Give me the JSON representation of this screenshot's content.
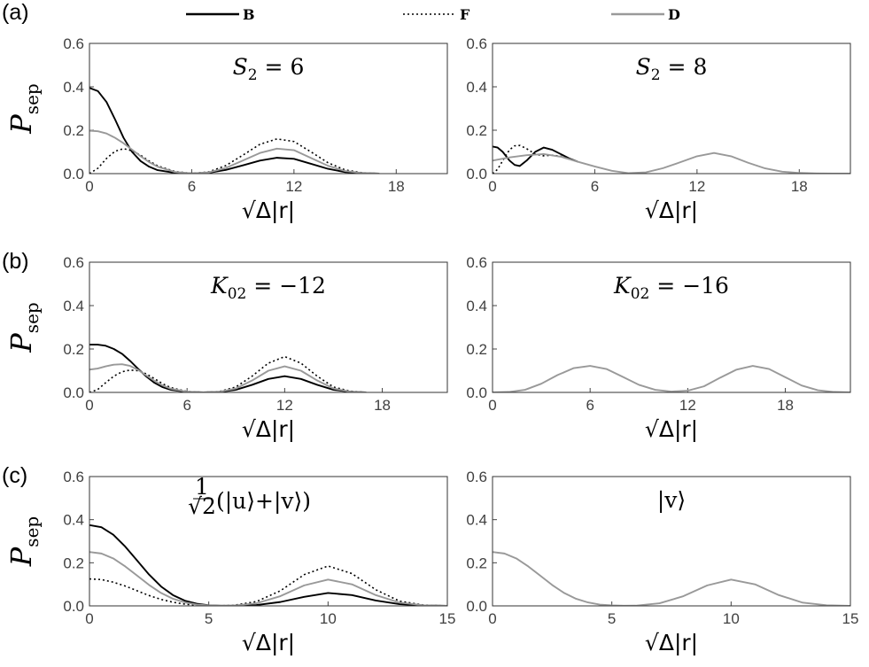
{
  "legend": [
    {
      "label": "B",
      "color": "#000000",
      "dash": ""
    },
    {
      "label": "F",
      "color": "#000000",
      "dash": "2,3"
    },
    {
      "label": "D",
      "color": "#999999",
      "dash": ""
    }
  ],
  "row_labels": [
    "(a)",
    "(b)",
    "(c)"
  ],
  "chart_data": [
    {
      "type": "line",
      "row": 0,
      "col": 0,
      "row_label": "(a)",
      "title": {
        "main": "S",
        "sub": "2",
        "rest": " = 6"
      },
      "ylabel": "P",
      "ylabel_sub": "sep",
      "xlabel": "√Δ|r|",
      "xlim": [
        0,
        21
      ],
      "ylim": [
        0,
        0.6
      ],
      "xticks": [
        0,
        6,
        12,
        18
      ],
      "yticks": [
        "0.0",
        "0.2",
        "0.4",
        "0.6"
      ],
      "series": [
        {
          "name": "B",
          "x": [
            0,
            0.5,
            1,
            1.5,
            2,
            2.5,
            3,
            3.5,
            4,
            5,
            6,
            7,
            8,
            9,
            10,
            11,
            12,
            13,
            14,
            15,
            16,
            17
          ],
          "y": [
            0.395,
            0.38,
            0.33,
            0.25,
            0.165,
            0.1,
            0.058,
            0.032,
            0.016,
            0.004,
            0.0005,
            0.004,
            0.017,
            0.038,
            0.06,
            0.073,
            0.068,
            0.045,
            0.022,
            0.007,
            0.002,
            0.0
          ]
        },
        {
          "name": "F",
          "x": [
            0,
            0.5,
            1,
            1.5,
            2,
            2.5,
            3,
            3.5,
            4,
            5,
            6,
            7,
            8,
            9,
            10,
            11,
            12,
            13,
            14,
            15,
            16,
            17
          ],
          "y": [
            0.0,
            0.025,
            0.07,
            0.103,
            0.115,
            0.105,
            0.085,
            0.058,
            0.036,
            0.01,
            0.0005,
            0.008,
            0.037,
            0.085,
            0.135,
            0.16,
            0.148,
            0.1,
            0.05,
            0.017,
            0.004,
            0.0
          ]
        },
        {
          "name": "D",
          "x": [
            0,
            0.5,
            1,
            1.5,
            2,
            2.5,
            3,
            3.5,
            4,
            5,
            6,
            7,
            8,
            9,
            10,
            11,
            12,
            13,
            14,
            15,
            16,
            17
          ],
          "y": [
            0.198,
            0.195,
            0.185,
            0.165,
            0.14,
            0.11,
            0.08,
            0.053,
            0.032,
            0.008,
            0.0005,
            0.006,
            0.026,
            0.06,
            0.095,
            0.115,
            0.108,
            0.072,
            0.036,
            0.012,
            0.003,
            0.0
          ]
        }
      ]
    },
    {
      "type": "line",
      "row": 0,
      "col": 1,
      "title": {
        "main": "S",
        "sub": "2",
        "rest": " = 8"
      },
      "xlabel": "√Δ|r|",
      "xlim": [
        0,
        21
      ],
      "ylim": [
        0,
        0.6
      ],
      "xticks": [
        0,
        6,
        12,
        18
      ],
      "yticks": [
        "0.0",
        "0.2",
        "0.4",
        "0.6"
      ],
      "series": [
        {
          "name": "B",
          "x": [
            0,
            0.3,
            0.6,
            1,
            1.3,
            1.6,
            2,
            2.5,
            3,
            3.5,
            4,
            4.5,
            5
          ],
          "y": [
            0.125,
            0.12,
            0.1,
            0.06,
            0.04,
            0.035,
            0.06,
            0.1,
            0.12,
            0.11,
            0.09,
            0.07,
            0.055
          ]
        },
        {
          "name": "F",
          "x": [
            0,
            0.3,
            0.6,
            1,
            1.3,
            1.6,
            2,
            2.5,
            3,
            3.5,
            4,
            4.5,
            5
          ],
          "y": [
            0.0,
            0.02,
            0.06,
            0.11,
            0.128,
            0.13,
            0.115,
            0.09,
            0.082,
            0.085,
            0.08,
            0.068,
            0.055
          ]
        },
        {
          "name": "D",
          "x": [
            0,
            1,
            2,
            3,
            4,
            5,
            6,
            7,
            8,
            9,
            10,
            11,
            12,
            13,
            14,
            15,
            16,
            17,
            18,
            19,
            20,
            21
          ],
          "y": [
            0.06,
            0.075,
            0.085,
            0.09,
            0.078,
            0.055,
            0.033,
            0.013,
            0.002,
            0.006,
            0.025,
            0.052,
            0.08,
            0.095,
            0.08,
            0.05,
            0.024,
            0.009,
            0.003,
            0.0008,
            0.0002,
            0.0
          ]
        }
      ]
    },
    {
      "type": "line",
      "row": 1,
      "col": 0,
      "row_label": "(b)",
      "title": {
        "main": "K",
        "sub": "02",
        "rest": " = −12"
      },
      "ylabel": "P",
      "ylabel_sub": "sep",
      "xlabel": "√Δ|r|",
      "xlim": [
        0,
        22
      ],
      "ylim": [
        0,
        0.6
      ],
      "xticks": [
        0,
        6,
        12,
        18
      ],
      "yticks": [
        "0.0",
        "0.2",
        "0.4",
        "0.6"
      ],
      "series": [
        {
          "name": "B",
          "x": [
            0,
            0.5,
            1,
            1.5,
            2,
            2.5,
            3,
            3.5,
            4,
            4.5,
            5,
            6,
            7,
            8,
            9,
            10,
            11,
            12,
            13,
            14,
            15,
            16,
            17
          ],
          "y": [
            0.22,
            0.22,
            0.215,
            0.2,
            0.178,
            0.145,
            0.108,
            0.073,
            0.044,
            0.024,
            0.012,
            0.002,
            0.0003,
            0.002,
            0.012,
            0.035,
            0.062,
            0.075,
            0.062,
            0.035,
            0.012,
            0.003,
            0.0
          ]
        },
        {
          "name": "F",
          "x": [
            0,
            0.5,
            1,
            1.5,
            2,
            2.5,
            3,
            3.5,
            4,
            4.5,
            5,
            6,
            7,
            8,
            9,
            10,
            11,
            12,
            13,
            14,
            15,
            16,
            17
          ],
          "y": [
            0.0,
            0.013,
            0.045,
            0.075,
            0.095,
            0.103,
            0.1,
            0.085,
            0.063,
            0.04,
            0.022,
            0.004,
            0.0003,
            0.004,
            0.025,
            0.075,
            0.135,
            0.165,
            0.135,
            0.075,
            0.025,
            0.006,
            0.0
          ]
        },
        {
          "name": "D",
          "x": [
            0,
            0.5,
            1,
            1.5,
            2,
            2.5,
            3,
            3.5,
            4,
            4.5,
            5,
            6,
            7,
            8,
            9,
            10,
            11,
            12,
            13,
            14,
            15,
            16,
            17
          ],
          "y": [
            0.105,
            0.11,
            0.12,
            0.128,
            0.13,
            0.122,
            0.103,
            0.078,
            0.053,
            0.032,
            0.017,
            0.003,
            0.0003,
            0.003,
            0.018,
            0.055,
            0.1,
            0.12,
            0.1,
            0.055,
            0.018,
            0.004,
            0.0
          ]
        }
      ]
    },
    {
      "type": "line",
      "row": 1,
      "col": 1,
      "title": {
        "main": "K",
        "sub": "02",
        "rest": " = −16"
      },
      "xlabel": "√Δ|r|",
      "xlim": [
        0,
        22
      ],
      "ylim": [
        0,
        0.6
      ],
      "xticks": [
        0,
        6,
        12,
        18
      ],
      "yticks": [
        "0.0",
        "0.2",
        "0.4",
        "0.6"
      ],
      "series": [
        {
          "name": "D",
          "x": [
            0,
            1,
            2,
            3,
            4,
            5,
            6,
            7,
            8,
            9,
            10,
            11,
            12,
            13,
            14,
            15,
            16,
            17,
            18,
            19,
            20,
            21,
            22
          ],
          "y": [
            0.0,
            0.002,
            0.012,
            0.04,
            0.08,
            0.112,
            0.122,
            0.108,
            0.072,
            0.035,
            0.012,
            0.004,
            0.008,
            0.028,
            0.068,
            0.105,
            0.122,
            0.108,
            0.07,
            0.032,
            0.01,
            0.002,
            0.0
          ]
        }
      ]
    },
    {
      "type": "line",
      "row": 2,
      "col": 0,
      "row_label": "(c)",
      "title_frac": {
        "num": "1",
        "den": "√2",
        "rest": "(|u⟩+|v⟩)"
      },
      "ylabel": "P",
      "ylabel_sub": "sep",
      "xlabel": "√Δ|r|",
      "xlim": [
        0,
        15
      ],
      "ylim": [
        0,
        0.6
      ],
      "xticks": [
        0,
        5,
        10,
        15
      ],
      "yticks": [
        "0.0",
        "0.2",
        "0.4",
        "0.6"
      ],
      "series": [
        {
          "name": "B",
          "x": [
            0,
            0.5,
            1,
            1.5,
            2,
            2.5,
            3,
            3.5,
            4,
            4.5,
            5,
            5.5,
            6,
            7,
            8,
            9,
            10,
            11,
            12,
            13,
            14,
            15
          ],
          "y": [
            0.375,
            0.365,
            0.33,
            0.275,
            0.21,
            0.145,
            0.09,
            0.05,
            0.024,
            0.01,
            0.003,
            0.0008,
            0.0005,
            0.004,
            0.018,
            0.042,
            0.06,
            0.05,
            0.025,
            0.008,
            0.002,
            0.0
          ]
        },
        {
          "name": "F",
          "x": [
            0,
            0.5,
            1,
            1.5,
            2,
            2.5,
            3,
            3.5,
            4,
            4.5,
            5,
            5.5,
            6,
            7,
            8,
            9,
            10,
            11,
            12,
            13,
            14,
            15
          ],
          "y": [
            0.125,
            0.122,
            0.11,
            0.092,
            0.07,
            0.048,
            0.03,
            0.017,
            0.008,
            0.003,
            0.001,
            0.0006,
            0.002,
            0.02,
            0.07,
            0.145,
            0.185,
            0.15,
            0.075,
            0.022,
            0.004,
            0.0
          ]
        },
        {
          "name": "D",
          "x": [
            0,
            0.5,
            1,
            1.5,
            2,
            2.5,
            3,
            3.5,
            4,
            4.5,
            5,
            5.5,
            6,
            7,
            8,
            9,
            10,
            11,
            12,
            13,
            14,
            15
          ],
          "y": [
            0.25,
            0.243,
            0.22,
            0.183,
            0.14,
            0.097,
            0.06,
            0.033,
            0.016,
            0.006,
            0.002,
            0.0006,
            0.001,
            0.012,
            0.045,
            0.095,
            0.122,
            0.1,
            0.05,
            0.015,
            0.003,
            0.0
          ]
        }
      ]
    },
    {
      "type": "line",
      "row": 2,
      "col": 1,
      "title_plain": "|v⟩",
      "xlabel": "√Δ|r|",
      "xlim": [
        0,
        15
      ],
      "ylim": [
        0,
        0.6
      ],
      "xticks": [
        0,
        5,
        10,
        15
      ],
      "yticks": [
        "0.0",
        "0.2",
        "0.4",
        "0.6"
      ],
      "series": [
        {
          "name": "D",
          "x": [
            0,
            0.5,
            1,
            1.5,
            2,
            2.5,
            3,
            3.5,
            4,
            4.5,
            5,
            5.5,
            6,
            7,
            8,
            9,
            10,
            11,
            12,
            13,
            14,
            15
          ],
          "y": [
            0.25,
            0.243,
            0.22,
            0.183,
            0.14,
            0.097,
            0.06,
            0.033,
            0.016,
            0.006,
            0.002,
            0.0006,
            0.001,
            0.012,
            0.045,
            0.095,
            0.122,
            0.1,
            0.05,
            0.015,
            0.003,
            0.0
          ]
        }
      ]
    }
  ]
}
